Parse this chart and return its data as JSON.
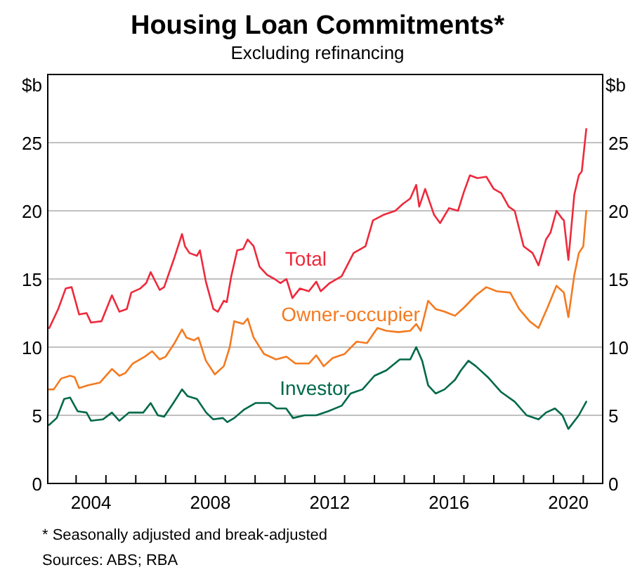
{
  "chart_data": {
    "type": "line",
    "title": "Housing Loan Commitments*",
    "subtitle": "Excluding refinancing",
    "ylabel": "$b",
    "y2label": "$b",
    "annotations": [
      "* Seasonally adjusted and break-adjusted",
      "Sources: ABS; RBA"
    ],
    "xlim": [
      2003.05,
      2021.65
    ],
    "xticks": [
      {
        "value": 2004,
        "label": null
      },
      {
        "value": 2004.5,
        "label": "2004"
      },
      {
        "value": 2005,
        "label": null
      },
      {
        "value": 2006,
        "label": null
      },
      {
        "value": 2007,
        "label": null
      },
      {
        "value": 2008,
        "label": null
      },
      {
        "value": 2008.5,
        "label": "2008"
      },
      {
        "value": 2009,
        "label": null
      },
      {
        "value": 2010,
        "label": null
      },
      {
        "value": 2011,
        "label": null
      },
      {
        "value": 2012,
        "label": null
      },
      {
        "value": 2012.5,
        "label": "2012"
      },
      {
        "value": 2013,
        "label": null
      },
      {
        "value": 2014,
        "label": null
      },
      {
        "value": 2015,
        "label": null
      },
      {
        "value": 2016,
        "label": null
      },
      {
        "value": 2016.5,
        "label": "2016"
      },
      {
        "value": 2017,
        "label": null
      },
      {
        "value": 2018,
        "label": null
      },
      {
        "value": 2019,
        "label": null
      },
      {
        "value": 2020,
        "label": null
      },
      {
        "value": 2020.5,
        "label": "2020"
      },
      {
        "value": 2021,
        "label": null
      }
    ],
    "ylim": [
      0,
      30
    ],
    "yticks": [
      0,
      5,
      10,
      15,
      20,
      25
    ],
    "y2lim": [
      0,
      30
    ],
    "y2ticks": [
      0,
      5,
      10,
      15,
      20,
      25
    ],
    "grid": "y",
    "marker": "none",
    "line_style": "solid",
    "series": [
      {
        "name": "Total",
        "color": "#ee2a3c",
        "x": [
          2003.1,
          2003.4,
          2003.65,
          2003.85,
          2004.1,
          2004.35,
          2004.5,
          2004.85,
          2005.2,
          2005.45,
          2005.7,
          2005.85,
          2006.15,
          2006.35,
          2006.5,
          2006.8,
          2006.95,
          2007.3,
          2007.55,
          2007.65,
          2007.8,
          2008.05,
          2008.15,
          2008.35,
          2008.6,
          2008.75,
          2008.95,
          2009.05,
          2009.2,
          2009.4,
          2009.6,
          2009.75,
          2009.95,
          2010.15,
          2010.4,
          2010.65,
          2010.85,
          2011.05,
          2011.25,
          2011.5,
          2011.8,
          2012.05,
          2012.2,
          2012.5,
          2012.9,
          2013.3,
          2013.7,
          2013.95,
          2014.3,
          2014.7,
          2014.95,
          2015.2,
          2015.4,
          2015.5,
          2015.7,
          2016.0,
          2016.2,
          2016.5,
          2016.8,
          2017.0,
          2017.2,
          2017.45,
          2017.75,
          2018.0,
          2018.25,
          2018.5,
          2018.7,
          2019.0,
          2019.3,
          2019.5,
          2019.75,
          2019.9,
          2020.1,
          2020.3,
          2020.35,
          2020.5,
          2020.7,
          2020.85,
          2020.95,
          2021.1
        ],
        "values": [
          11.4,
          12.8,
          14.3,
          14.4,
          12.4,
          12.5,
          11.8,
          11.9,
          13.8,
          12.6,
          12.8,
          14.0,
          14.3,
          14.7,
          15.5,
          14.2,
          14.4,
          16.6,
          18.3,
          17.4,
          16.9,
          16.7,
          17.1,
          14.8,
          12.8,
          12.6,
          13.4,
          13.3,
          15.2,
          17.1,
          17.2,
          17.9,
          17.4,
          15.9,
          15.3,
          15.0,
          14.7,
          15.0,
          13.6,
          14.3,
          14.1,
          14.8,
          14.1,
          14.7,
          15.2,
          16.9,
          17.4,
          19.3,
          19.7,
          20.0,
          20.5,
          20.9,
          21.9,
          20.3,
          21.6,
          19.7,
          19.1,
          20.2,
          20.0,
          21.4,
          22.6,
          22.4,
          22.5,
          21.6,
          21.3,
          20.3,
          20.0,
          17.4,
          16.9,
          16.0,
          17.9,
          18.4,
          20.0,
          19.4,
          19.3,
          16.4,
          21.2,
          22.6,
          22.9,
          26.0
        ]
      },
      {
        "name": "Owner-occupier",
        "color": "#f47a20",
        "x": [
          2003.1,
          2003.25,
          2003.5,
          2003.8,
          2003.95,
          2004.1,
          2004.4,
          2004.8,
          2005.2,
          2005.45,
          2005.65,
          2005.9,
          2006.3,
          2006.55,
          2006.8,
          2007.0,
          2007.3,
          2007.55,
          2007.7,
          2007.95,
          2008.1,
          2008.35,
          2008.65,
          2008.95,
          2009.15,
          2009.3,
          2009.6,
          2009.75,
          2009.95,
          2010.3,
          2010.7,
          2011.05,
          2011.35,
          2011.8,
          2012.05,
          2012.3,
          2012.6,
          2013.0,
          2013.4,
          2013.75,
          2014.1,
          2014.4,
          2014.8,
          2015.2,
          2015.4,
          2015.55,
          2015.8,
          2016.05,
          2016.35,
          2016.7,
          2017.0,
          2017.4,
          2017.75,
          2018.1,
          2018.55,
          2018.85,
          2019.2,
          2019.5,
          2019.8,
          2020.1,
          2020.35,
          2020.5,
          2020.7,
          2020.85,
          2021.0,
          2021.1
        ],
        "values": [
          6.9,
          6.9,
          7.7,
          7.9,
          7.8,
          7.0,
          7.2,
          7.4,
          8.4,
          7.9,
          8.1,
          8.8,
          9.3,
          9.7,
          9.1,
          9.3,
          10.3,
          11.3,
          10.7,
          10.5,
          10.7,
          9.0,
          8.0,
          8.6,
          10.0,
          11.9,
          11.7,
          12.1,
          10.7,
          9.5,
          9.1,
          9.3,
          8.8,
          8.8,
          9.4,
          8.6,
          9.2,
          9.5,
          10.4,
          10.3,
          11.4,
          11.2,
          11.1,
          11.2,
          11.7,
          11.2,
          13.4,
          12.8,
          12.6,
          12.3,
          12.9,
          13.8,
          14.4,
          14.1,
          14.0,
          12.8,
          11.9,
          11.4,
          12.9,
          14.5,
          14.0,
          12.2,
          15.3,
          16.9,
          17.4,
          20.0
        ]
      },
      {
        "name": "Investor",
        "color": "#00694a",
        "x": [
          2003.1,
          2003.35,
          2003.6,
          2003.8,
          2004.05,
          2004.35,
          2004.5,
          2004.9,
          2005.2,
          2005.45,
          2005.77,
          2006.25,
          2006.5,
          2006.74,
          2006.95,
          2007.26,
          2007.55,
          2007.74,
          2008.05,
          2008.36,
          2008.6,
          2008.92,
          2009.07,
          2009.3,
          2009.62,
          2010.01,
          2010.48,
          2010.72,
          2011.04,
          2011.27,
          2011.66,
          2012.05,
          2012.45,
          2012.9,
          2013.2,
          2013.6,
          2014.0,
          2014.4,
          2014.85,
          2015.2,
          2015.4,
          2015.6,
          2015.8,
          2016.05,
          2016.35,
          2016.7,
          2016.9,
          2017.15,
          2017.4,
          2017.8,
          2018.25,
          2018.7,
          2019.1,
          2019.5,
          2019.75,
          2020.05,
          2020.3,
          2020.5,
          2020.85,
          2021.1
        ],
        "values": [
          4.3,
          4.8,
          6.2,
          6.3,
          5.3,
          5.2,
          4.6,
          4.7,
          5.2,
          4.6,
          5.2,
          5.2,
          5.9,
          5.0,
          4.9,
          5.9,
          6.9,
          6.4,
          6.2,
          5.2,
          4.7,
          4.8,
          4.5,
          4.8,
          5.4,
          5.9,
          5.9,
          5.5,
          5.5,
          4.8,
          5.0,
          5.0,
          5.3,
          5.7,
          6.6,
          6.9,
          7.9,
          8.3,
          9.1,
          9.1,
          10.0,
          9.0,
          7.2,
          6.6,
          6.9,
          7.6,
          8.3,
          9.0,
          8.6,
          7.8,
          6.7,
          6.0,
          5.0,
          4.7,
          5.2,
          5.5,
          5.0,
          4.0,
          5.0,
          6.0
        ]
      }
    ]
  }
}
